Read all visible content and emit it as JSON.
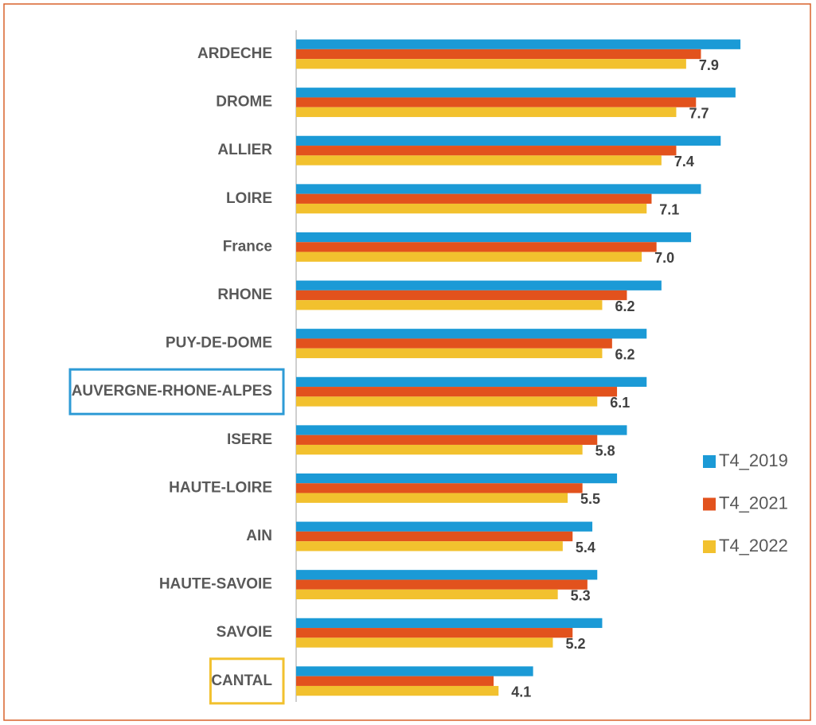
{
  "chart_data": {
    "type": "bar",
    "orientation": "horizontal",
    "categories": [
      "ARDECHE",
      "DROME",
      "ALLIER",
      "LOIRE",
      "France",
      "RHONE",
      "PUY-DE-DOME",
      "AUVERGNE-RHONE-ALPES",
      "ISERE",
      "HAUTE-LOIRE",
      "AIN",
      "HAUTE-SAVOIE",
      "SAVOIE",
      "CANTAL"
    ],
    "series": [
      {
        "name": "T4_2019",
        "color": "#1b9ad6",
        "values": [
          9.0,
          8.9,
          8.6,
          8.2,
          8.0,
          7.4,
          7.1,
          7.1,
          6.7,
          6.5,
          6.0,
          6.1,
          6.2,
          4.8
        ]
      },
      {
        "name": "T4_2021",
        "color": "#e2521d",
        "values": [
          8.2,
          8.1,
          7.7,
          7.2,
          7.3,
          6.7,
          6.4,
          6.5,
          6.1,
          5.8,
          5.6,
          5.9,
          5.6,
          4.0
        ]
      },
      {
        "name": "T4_2022",
        "color": "#f2c12e",
        "values": [
          7.9,
          7.7,
          7.4,
          7.1,
          7.0,
          6.2,
          6.2,
          6.1,
          5.8,
          5.5,
          5.4,
          5.3,
          5.2,
          4.1
        ],
        "value_labels": [
          "7.9",
          "7.7",
          "7.4",
          "7.1",
          "7.0",
          "6.2",
          "6.2",
          "6.1",
          "5.8",
          "5.5",
          "5.4",
          "5.3",
          "5.2",
          "4.1"
        ]
      }
    ],
    "xlim": [
      0,
      10.45
    ],
    "legend": "right",
    "category_box_colors": [
      null,
      null,
      null,
      null,
      null,
      null,
      null,
      "#2e9bd6",
      null,
      null,
      null,
      null,
      null,
      "#f2c12e"
    ]
  }
}
